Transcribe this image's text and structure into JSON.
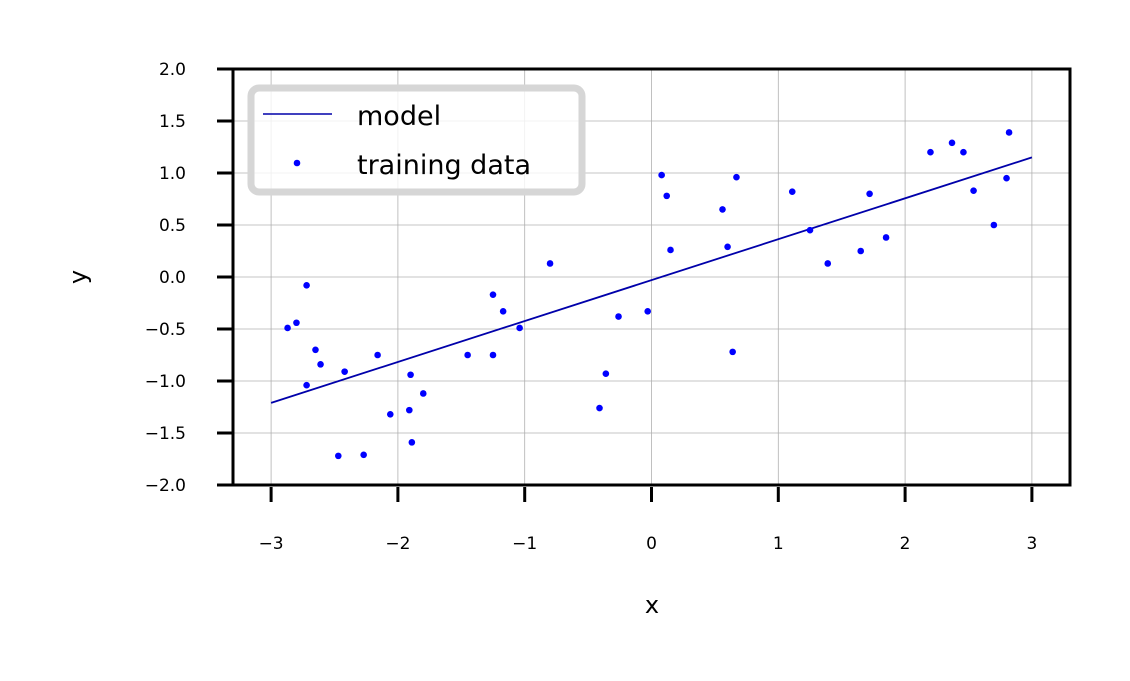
{
  "chart_data": {
    "type": "scatter",
    "title": "",
    "xlabel": "x",
    "ylabel": "y",
    "xlim": [
      -3.3,
      3.3
    ],
    "ylim": [
      -2.0,
      2.0
    ],
    "xticks": [
      -3,
      -2,
      -1,
      0,
      1,
      2,
      3
    ],
    "xtick_labels": [
      "−3",
      "−2",
      "−1",
      "0",
      "1",
      "2",
      "3"
    ],
    "yticks": [
      2.0,
      1.5,
      1.0,
      0.5,
      0.0,
      -0.5,
      -1.0,
      -1.5,
      -2.0
    ],
    "ytick_labels": [
      "2.0",
      "1.5",
      "1.0",
      "0.5",
      "0.0",
      "−0.5",
      "−1.0",
      "−1.5",
      "−2.0"
    ],
    "grid": true,
    "legend_position": "upper left",
    "legend": [
      "model",
      "training data"
    ],
    "series": [
      {
        "name": "model",
        "kind": "line",
        "color": "#0000aa",
        "x": [
          -3.0,
          3.0
        ],
        "y": [
          -1.21,
          1.15
        ]
      },
      {
        "name": "training data",
        "kind": "scatter",
        "color": "#0000ff",
        "points": [
          [
            -2.87,
            -0.49
          ],
          [
            -2.8,
            -0.44
          ],
          [
            -2.72,
            -0.08
          ],
          [
            -2.65,
            -0.7
          ],
          [
            -2.61,
            -0.84
          ],
          [
            -2.72,
            -1.04
          ],
          [
            -2.42,
            -0.91
          ],
          [
            -2.47,
            -1.72
          ],
          [
            -2.27,
            -1.71
          ],
          [
            -2.16,
            -0.75
          ],
          [
            -2.06,
            -1.32
          ],
          [
            -1.91,
            -1.28
          ],
          [
            -1.9,
            -0.94
          ],
          [
            -1.89,
            -1.59
          ],
          [
            -1.8,
            -1.12
          ],
          [
            -1.45,
            -0.75
          ],
          [
            -1.25,
            -0.75
          ],
          [
            -1.25,
            -0.17
          ],
          [
            -1.17,
            -0.33
          ],
          [
            -1.04,
            -0.49
          ],
          [
            -0.8,
            0.13
          ],
          [
            -0.41,
            -1.26
          ],
          [
            -0.36,
            -0.93
          ],
          [
            -0.26,
            -0.38
          ],
          [
            -0.03,
            -0.33
          ],
          [
            0.08,
            0.98
          ],
          [
            0.12,
            0.78
          ],
          [
            0.15,
            0.26
          ],
          [
            0.56,
            0.65
          ],
          [
            0.6,
            0.29
          ],
          [
            0.64,
            -0.72
          ],
          [
            0.67,
            0.96
          ],
          [
            1.11,
            0.82
          ],
          [
            1.25,
            0.45
          ],
          [
            1.39,
            0.13
          ],
          [
            1.65,
            0.25
          ],
          [
            1.72,
            0.8
          ],
          [
            1.85,
            0.38
          ],
          [
            2.2,
            1.2
          ],
          [
            2.37,
            1.29
          ],
          [
            2.46,
            1.2
          ],
          [
            2.54,
            0.83
          ],
          [
            2.7,
            0.5
          ],
          [
            2.8,
            0.95
          ],
          [
            2.82,
            1.39
          ]
        ]
      }
    ]
  }
}
